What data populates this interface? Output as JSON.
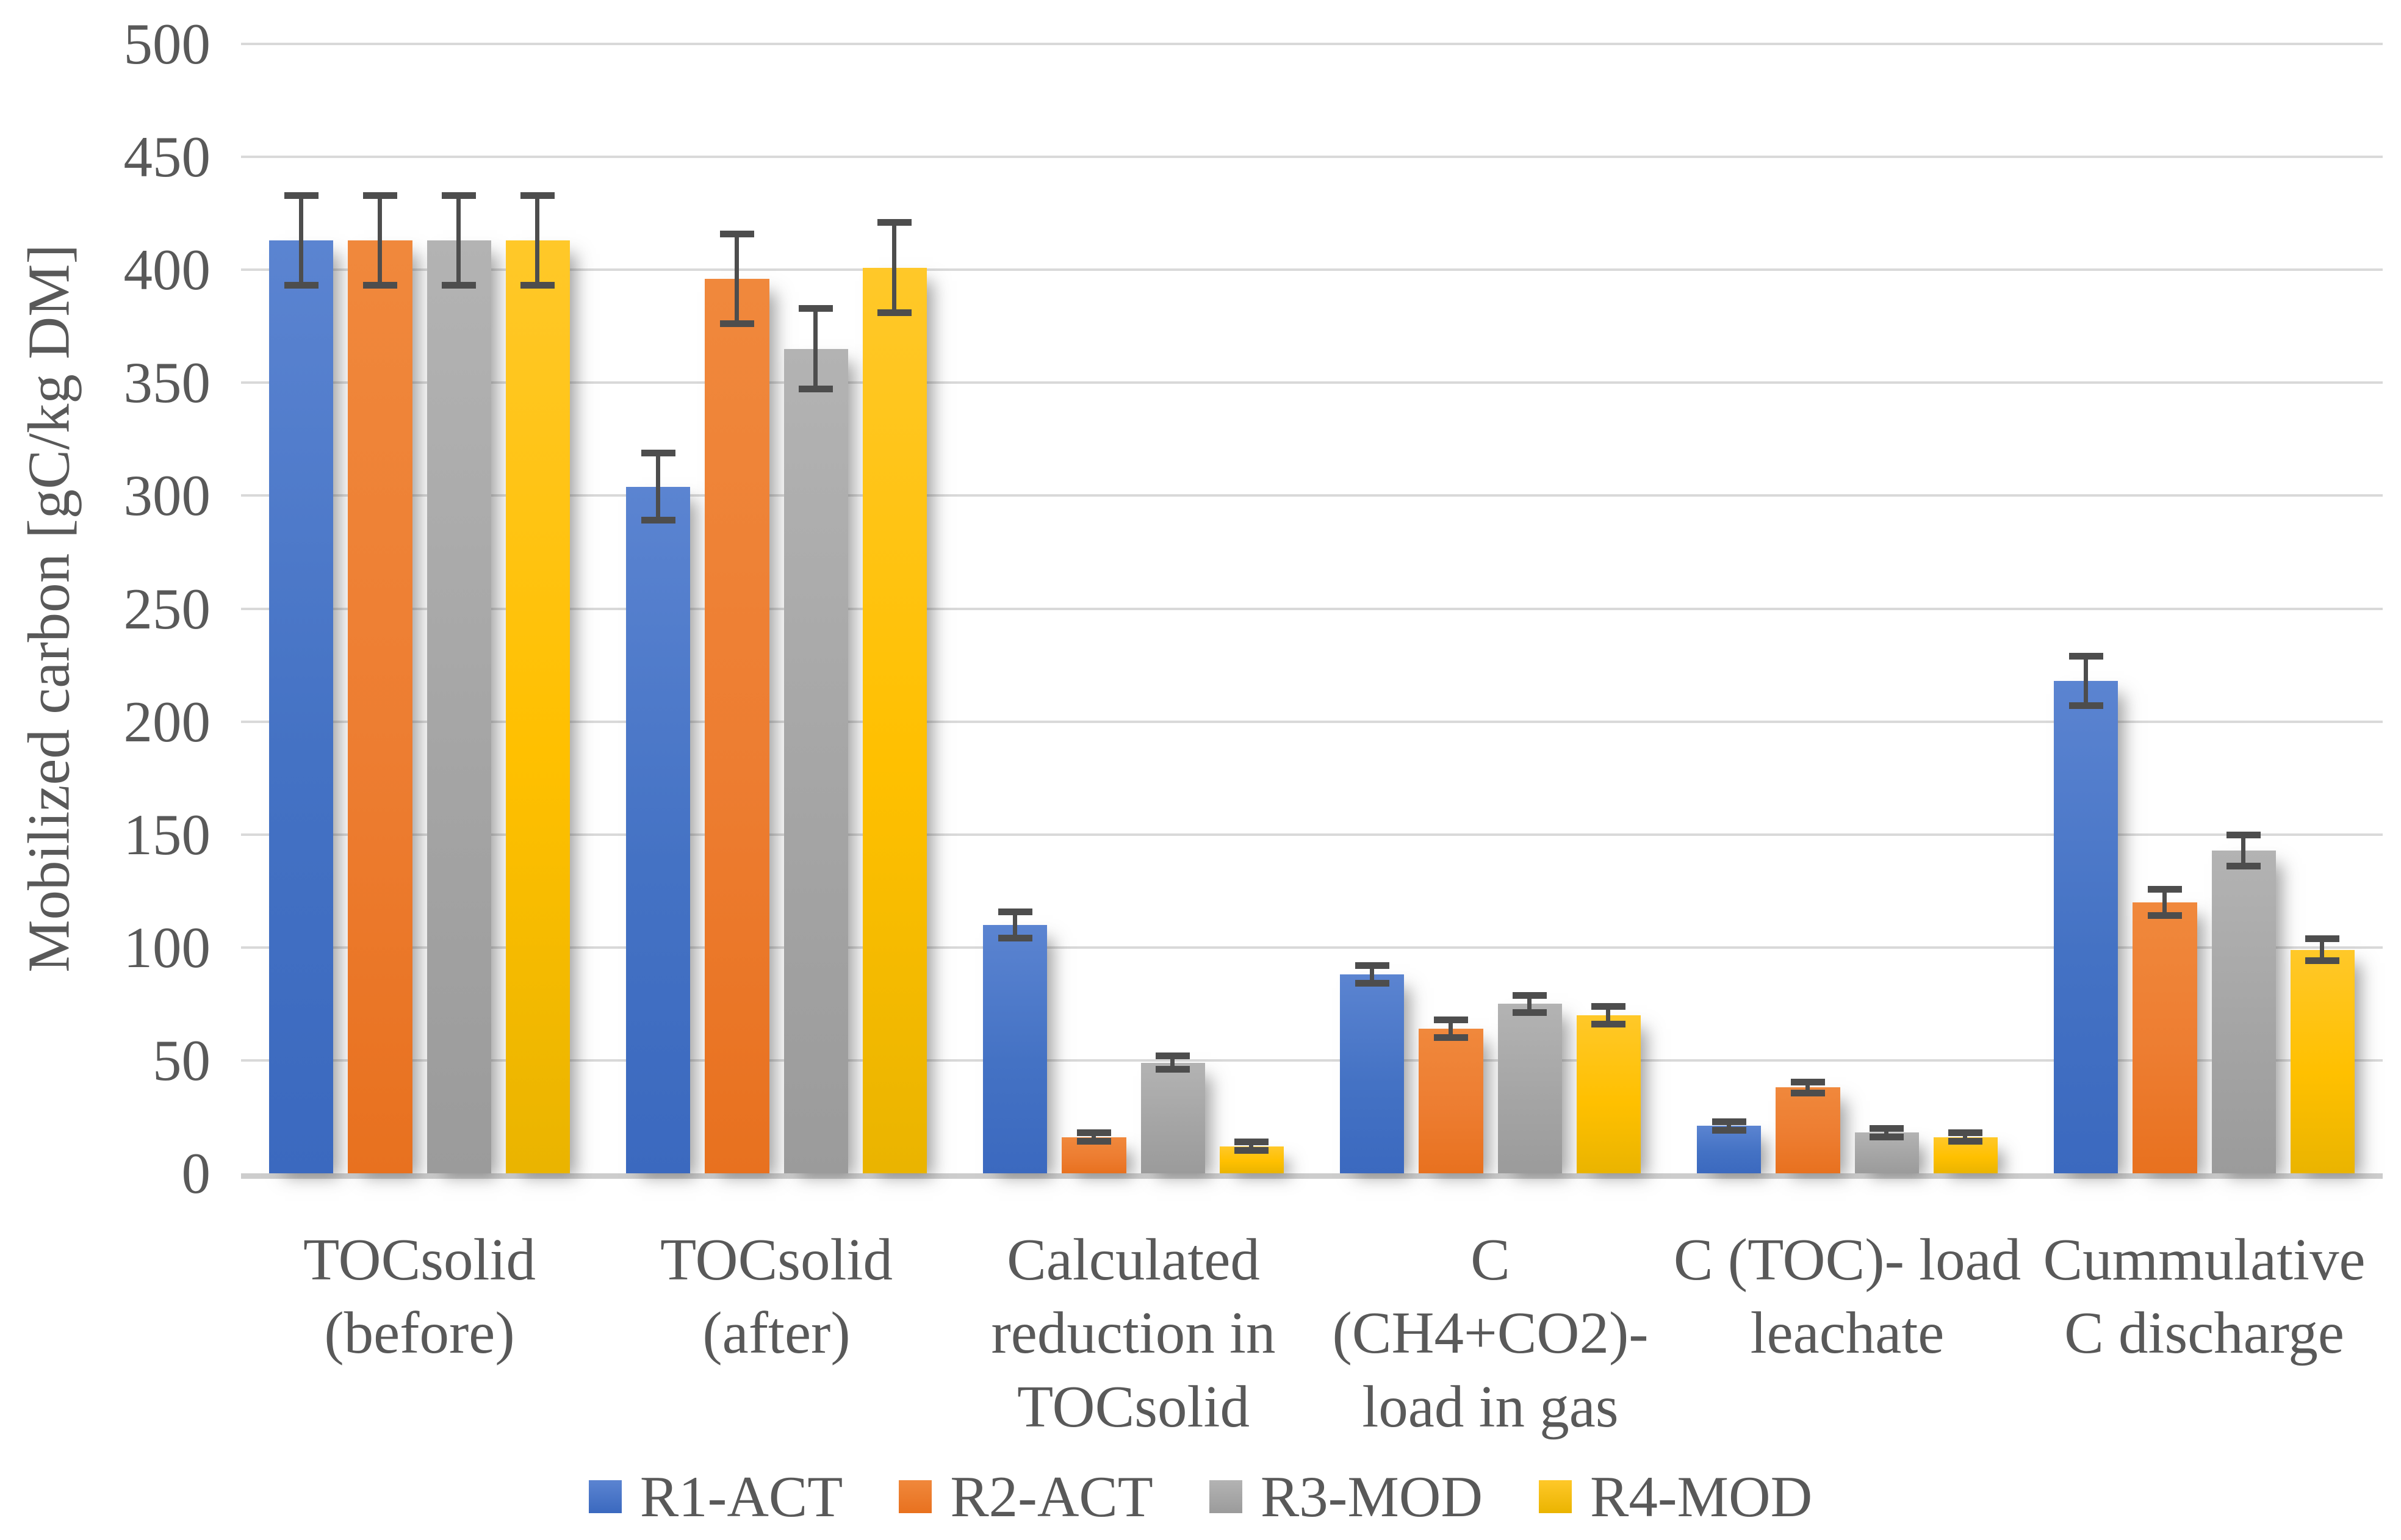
{
  "chart_data": {
    "type": "bar",
    "title": "",
    "xlabel": "",
    "ylabel": "Mobilized carbon [gC/kg DM]",
    "ylim": [
      0,
      500
    ],
    "ytick_step": 50,
    "yticks": [
      0,
      50,
      100,
      150,
      200,
      250,
      300,
      350,
      400,
      450,
      500
    ],
    "grid": true,
    "legend_position": "bottom",
    "text_color": "#595959",
    "gridline_color": "#d9d9d9",
    "axis_line_color": "#cdcdcd",
    "error_bar_color": "#4d4d4d",
    "categories": [
      {
        "label": "TOCsolid (before)",
        "lines": [
          "TOCsolid",
          "(before)"
        ]
      },
      {
        "label": "TOCsolid (after)",
        "lines": [
          "TOCsolid",
          "(after)"
        ]
      },
      {
        "label": "Calculated reduction in TOCsolid",
        "lines": [
          "Calculated",
          "reduction in",
          "TOCsolid"
        ]
      },
      {
        "label": "C (CH4+CO2)- load in gas",
        "lines": [
          "C (CH4+CO2)-",
          "load in gas"
        ]
      },
      {
        "label": "C (TOC)- load leachate",
        "lines": [
          "C (TOC)- load",
          "leachate"
        ]
      },
      {
        "label": "Cummulative C discharge",
        "lines": [
          "Cummulative",
          "C discharge"
        ]
      }
    ],
    "series": [
      {
        "name": "R1-ACT",
        "color": "#4472C4",
        "fill_top": "#5b84d1",
        "fill_bottom": "#3b69bf",
        "values": [
          413,
          304,
          110,
          88,
          21,
          218
        ],
        "errors": [
          20,
          15,
          6,
          4,
          2,
          11
        ]
      },
      {
        "name": "R2-ACT",
        "color": "#ED7D31",
        "fill_top": "#f0883c",
        "fill_bottom": "#e8711f",
        "values": [
          413,
          396,
          16,
          64,
          38,
          120
        ],
        "errors": [
          20,
          20,
          2,
          4,
          2.5,
          6
        ]
      },
      {
        "name": "R3-MOD",
        "color": "#A5A5A5",
        "fill_top": "#b3b3b3",
        "fill_bottom": "#9b9b9b",
        "values": [
          413,
          365,
          49,
          75,
          18,
          143
        ],
        "errors": [
          20,
          18,
          3,
          4,
          2,
          7
        ]
      },
      {
        "name": "R4-MOD",
        "color": "#FFC000",
        "fill_top": "#ffc829",
        "fill_bottom": "#eab400",
        "values": [
          413,
          401,
          12,
          70,
          16,
          99
        ],
        "errors": [
          20,
          20,
          2,
          4,
          2,
          5
        ]
      }
    ]
  }
}
